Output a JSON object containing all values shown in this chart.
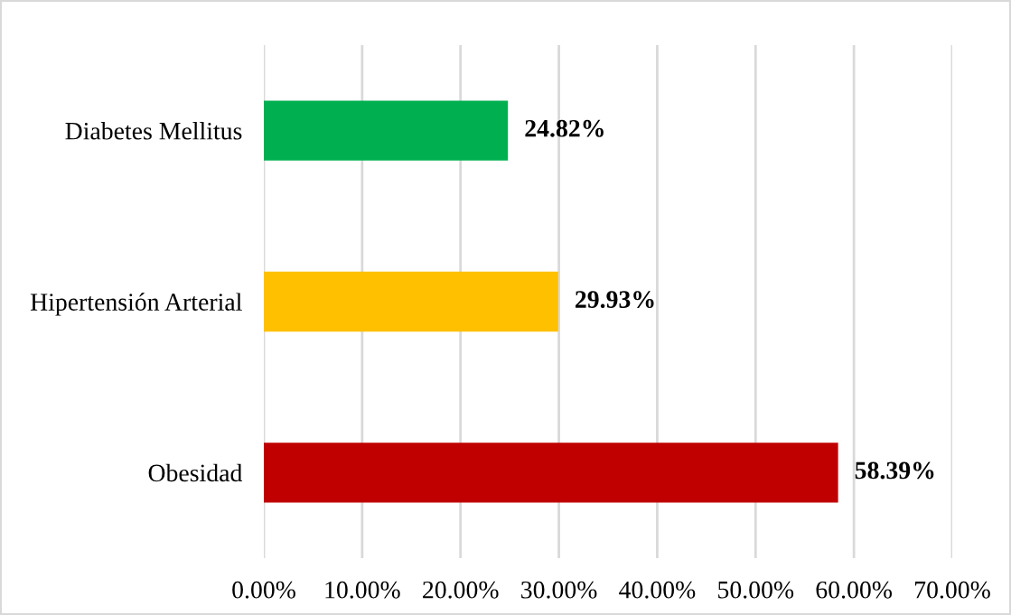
{
  "chart_data": {
    "type": "bar",
    "orientation": "horizontal",
    "categories": [
      "Diabetes Mellitus",
      "Hipertensión Arterial",
      "Obesidad"
    ],
    "values": [
      24.82,
      29.93,
      58.39
    ],
    "colors": [
      "#00b050",
      "#ffc000",
      "#c00000"
    ],
    "value_labels": [
      "24.82%",
      "29.93%",
      "58.39%"
    ],
    "xlim": [
      0,
      70
    ],
    "xticks": [
      {
        "value": 0,
        "label": "0.00%"
      },
      {
        "value": 10,
        "label": "10.00%"
      },
      {
        "value": 20,
        "label": "20.00%"
      },
      {
        "value": 30,
        "label": "30.00%"
      },
      {
        "value": 40,
        "label": "40.00%"
      },
      {
        "value": 50,
        "label": "50.00%"
      },
      {
        "value": 60,
        "label": "60.00%"
      },
      {
        "value": 70,
        "label": "70.00%"
      }
    ],
    "grid": "x",
    "legend": false
  }
}
